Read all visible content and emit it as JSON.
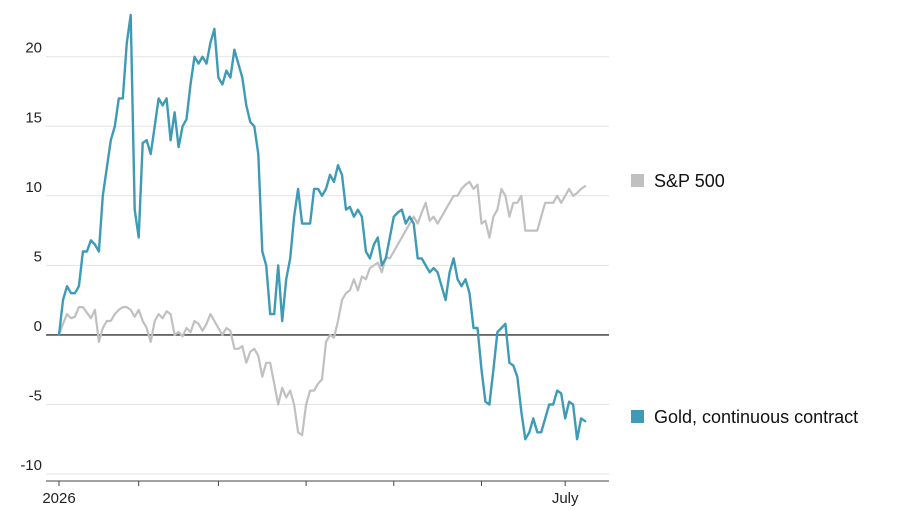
{
  "chart_data": {
    "type": "line",
    "title": "",
    "xlabel": "",
    "ylabel": "",
    "ylim": [
      -10.5,
      23.5
    ],
    "xlim": [
      0,
      138
    ],
    "y_ticks": [
      20,
      15,
      10,
      5,
      0,
      -5,
      -10
    ],
    "x_tick_labels": [
      {
        "label": "2026",
        "x": 0
      },
      {
        "label": "July",
        "x": 127
      }
    ],
    "x_minor_ticks": [
      0,
      20,
      40,
      62,
      84,
      106,
      127
    ],
    "grid": true,
    "zero_line": true,
    "legend_placement": "right",
    "series": [
      {
        "name": "S&P 500",
        "color": "#c0c0c0",
        "values": [
          0,
          0.8,
          1.5,
          1.2,
          1.3,
          2,
          2,
          1.6,
          1.2,
          1.8,
          -0.5,
          0.5,
          1,
          1,
          1.5,
          1.8,
          2,
          2,
          1.8,
          1.3,
          1.8,
          1,
          0.5,
          -0.5,
          1,
          1.5,
          1.2,
          1.7,
          1.5,
          0,
          0.2,
          -0.1,
          0.5,
          0.2,
          1,
          0.8,
          0.3,
          0.8,
          1.5,
          1,
          0.5,
          0,
          0.5,
          0.3,
          -1,
          -1,
          -0.8,
          -2,
          -1.2,
          -1,
          -1.5,
          -3,
          -2,
          -2,
          -3.5,
          -5,
          -3.8,
          -4.5,
          -4,
          -5,
          -7,
          -7.2,
          -5,
          -4,
          -4,
          -3.5,
          -3.2,
          -0.5,
          0,
          -0.2,
          1,
          2.5,
          3,
          3.2,
          4,
          3.2,
          4.2,
          4,
          4.8,
          5,
          5.2,
          4.5,
          5.6,
          5.5,
          6,
          6.5,
          7,
          7.5,
          8,
          8.5,
          8,
          8.8,
          9.5,
          8.2,
          8.5,
          8,
          8.5,
          9,
          9.5,
          10,
          10,
          10.5,
          10.8,
          11,
          10.5,
          10.8,
          8,
          8.2,
          7,
          8.5,
          9,
          10.5,
          10,
          8.5,
          9.5,
          9.5,
          10,
          7.5,
          7.5,
          7.5,
          7.5,
          8.5,
          9.5,
          9.5,
          9.5,
          10,
          9.5,
          10,
          10.5,
          10,
          10.2,
          10.5,
          10.7
        ]
      },
      {
        "name": "Gold, continuous contract",
        "color": "#3f9bb5",
        "values": [
          0,
          2.5,
          3.5,
          3,
          3,
          3.5,
          6,
          6,
          6.8,
          6.5,
          6,
          10,
          12,
          14,
          15,
          17,
          17,
          21,
          23,
          9,
          7,
          13.8,
          14,
          13,
          15,
          17,
          16.5,
          17,
          14,
          16,
          13.5,
          15,
          15.5,
          18,
          20,
          19.5,
          20,
          19.5,
          21,
          22,
          18.5,
          18,
          19,
          18.5,
          20.5,
          19.5,
          18.5,
          16.5,
          15.3,
          15,
          13,
          6,
          5,
          1.5,
          1.5,
          5,
          1,
          4,
          5.5,
          8.5,
          10.5,
          8,
          8,
          8,
          10.5,
          10.5,
          10,
          10.5,
          11.5,
          11,
          12.2,
          11.5,
          9,
          9.2,
          8.5,
          9,
          8.5,
          6,
          5.5,
          6.5,
          7,
          5,
          5.5,
          7,
          8.5,
          8.8,
          9,
          8,
          8.5,
          8,
          5.5,
          5.5,
          5,
          4.5,
          4.8,
          4.5,
          3.5,
          2.5,
          4.5,
          5.5,
          4,
          3.5,
          4,
          3,
          0.5,
          0.5,
          -2.5,
          -4.8,
          -5,
          -2.5,
          0.2,
          0.5,
          0.8,
          -2,
          -2.2,
          -3,
          -5.5,
          -7.5,
          -7,
          -6,
          -7,
          -7,
          -6,
          -5,
          -5,
          -4,
          -4.2,
          -6,
          -4.8,
          -5,
          -7.5,
          -6,
          -6.2
        ]
      }
    ]
  },
  "legend": {
    "items": [
      {
        "label": "S&P 500",
        "color": "#c0c0c0"
      },
      {
        "label": "Gold, continuous contract",
        "color": "#3f9bb5"
      }
    ]
  }
}
